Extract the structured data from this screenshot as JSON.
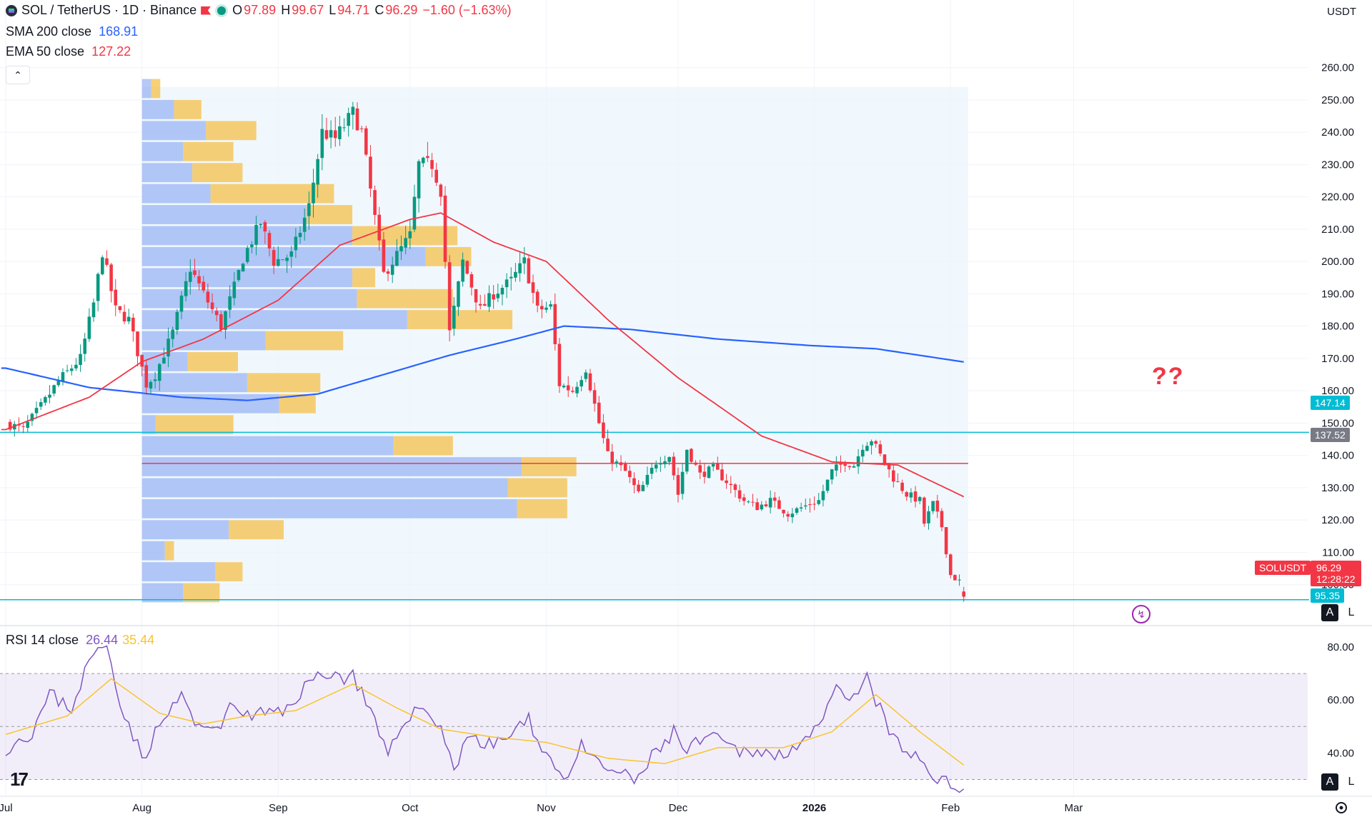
{
  "header": {
    "symbol": "SOL / TetherUS · 1D · Binance",
    "ohlc": {
      "o_label": "O",
      "o": "97.89",
      "h_label": "H",
      "h": "99.67",
      "l_label": "L",
      "l": "94.71",
      "c_label": "C",
      "c": "96.29",
      "change": "−1.60 (−1.63%)"
    },
    "sma_label": "SMA 200 close",
    "sma_value": "168.91",
    "ema_label": "EMA 50 close",
    "ema_value": "127.22",
    "currency": "USDT"
  },
  "overlay_text": {
    "question": "??",
    "tv_logo": "17"
  },
  "badges": {
    "resistance": "147.14",
    "poc": "137.52",
    "symbol_tag": "SOLUSDT",
    "last_price": "96.29",
    "countdown": "12:28:22",
    "support": "95.35",
    "auto_label": "A",
    "log_label": "L"
  },
  "rsi": {
    "label": "RSI 14 close",
    "value": "26.44",
    "ma_value": "35.44"
  },
  "colors": {
    "up": "#089981",
    "down": "#f23645",
    "sma": "#2962ff",
    "ema": "#f23645",
    "rsi": "#7e57c2",
    "rsi_ma": "#f7c52d",
    "line": "#00bcd4"
  },
  "chart_data": [
    {
      "type": "candlestick",
      "title": "SOL / TetherUS · 1D · Binance",
      "y_axis": {
        "ticks": [
          100,
          110,
          120,
          130,
          140,
          150,
          160,
          170,
          180,
          190,
          200,
          210,
          220,
          230,
          240,
          250,
          260
        ],
        "ylim": [
          88,
          263
        ]
      },
      "x_axis": {
        "tick_labels": [
          "Jul",
          "Aug",
          "Sep",
          "Oct",
          "Nov",
          "Dec",
          "2026",
          "Feb",
          "Mar"
        ],
        "tick_dates": [
          "2025-07-01",
          "2025-08-01",
          "2025-09-01",
          "2025-10-01",
          "2025-11-01",
          "2025-12-01",
          "2026-01-01",
          "2026-02-01",
          "2026-03-01"
        ]
      },
      "anchors": [
        [
          "2025-07-01",
          150
        ],
        [
          "2025-07-05",
          148
        ],
        [
          "2025-07-10",
          157
        ],
        [
          "2025-07-13",
          163
        ],
        [
          "2025-07-18",
          170
        ],
        [
          "2025-07-21",
          187
        ],
        [
          "2025-07-23",
          203
        ],
        [
          "2025-07-26",
          185
        ],
        [
          "2025-07-29",
          182
        ],
        [
          "2025-08-02",
          162
        ],
        [
          "2025-08-04",
          165
        ],
        [
          "2025-08-08",
          178
        ],
        [
          "2025-08-12",
          198
        ],
        [
          "2025-08-15",
          190
        ],
        [
          "2025-08-19",
          180
        ],
        [
          "2025-08-22",
          192
        ],
        [
          "2025-08-24",
          201
        ],
        [
          "2025-08-28",
          212
        ],
        [
          "2025-08-31",
          200
        ],
        [
          "2025-09-04",
          202
        ],
        [
          "2025-09-08",
          217
        ],
        [
          "2025-09-11",
          240
        ],
        [
          "2025-09-14",
          238
        ],
        [
          "2025-09-18",
          246
        ],
        [
          "2025-09-20",
          240
        ],
        [
          "2025-09-22",
          222
        ],
        [
          "2025-09-25",
          196
        ],
        [
          "2025-09-27",
          200
        ],
        [
          "2025-10-01",
          208
        ],
        [
          "2025-10-03",
          230
        ],
        [
          "2025-10-06",
          230
        ],
        [
          "2025-10-08",
          222
        ],
        [
          "2025-10-10",
          178
        ],
        [
          "2025-10-13",
          200
        ],
        [
          "2025-10-17",
          185
        ],
        [
          "2025-10-20",
          190
        ],
        [
          "2025-10-24",
          194
        ],
        [
          "2025-10-27",
          200
        ],
        [
          "2025-10-30",
          185
        ],
        [
          "2025-11-02",
          186
        ],
        [
          "2025-11-04",
          162
        ],
        [
          "2025-11-07",
          160
        ],
        [
          "2025-11-10",
          167
        ],
        [
          "2025-11-13",
          150
        ],
        [
          "2025-11-15",
          140
        ],
        [
          "2025-11-19",
          135
        ],
        [
          "2025-11-22",
          128
        ],
        [
          "2025-11-26",
          138
        ],
        [
          "2025-11-29",
          140
        ],
        [
          "2025-12-01",
          128
        ],
        [
          "2025-12-03",
          142
        ],
        [
          "2025-12-06",
          134
        ],
        [
          "2025-12-09",
          136
        ],
        [
          "2025-12-12",
          132
        ],
        [
          "2025-12-16",
          126
        ],
        [
          "2025-12-19",
          124
        ],
        [
          "2025-12-22",
          126
        ],
        [
          "2025-12-26",
          122
        ],
        [
          "2025-12-31",
          125
        ],
        [
          "2026-01-02",
          126
        ],
        [
          "2026-01-05",
          135
        ],
        [
          "2026-01-08",
          138
        ],
        [
          "2026-01-10",
          137
        ],
        [
          "2026-01-12",
          143
        ],
        [
          "2026-01-14",
          145
        ],
        [
          "2026-01-16",
          140
        ],
        [
          "2026-01-19",
          133
        ],
        [
          "2026-01-22",
          128
        ],
        [
          "2026-01-25",
          126
        ],
        [
          "2026-01-26",
          119
        ],
        [
          "2026-01-28",
          125
        ],
        [
          "2026-01-30",
          118
        ],
        [
          "2026-02-01",
          103
        ],
        [
          "2026-02-03",
          101
        ],
        [
          "2026-02-04",
          96.29
        ]
      ],
      "sma200": [
        [
          "2025-07-01",
          167
        ],
        [
          "2025-07-20",
          161
        ],
        [
          "2025-08-10",
          158
        ],
        [
          "2025-08-25",
          157
        ],
        [
          "2025-09-10",
          159
        ],
        [
          "2025-09-25",
          165
        ],
        [
          "2025-10-10",
          171
        ],
        [
          "2025-10-25",
          176
        ],
        [
          "2025-11-05",
          180
        ],
        [
          "2025-11-20",
          179
        ],
        [
          "2025-12-10",
          176
        ],
        [
          "2025-12-31",
          174
        ],
        [
          "2026-01-15",
          173
        ],
        [
          "2026-02-04",
          168.91
        ]
      ],
      "ema50": [
        [
          "2025-07-01",
          148
        ],
        [
          "2025-07-20",
          158
        ],
        [
          "2025-08-01",
          169
        ],
        [
          "2025-08-15",
          176
        ],
        [
          "2025-09-01",
          188
        ],
        [
          "2025-09-15",
          205
        ],
        [
          "2025-10-01",
          213
        ],
        [
          "2025-10-08",
          215
        ],
        [
          "2025-10-20",
          206
        ],
        [
          "2025-11-01",
          200
        ],
        [
          "2025-11-15",
          182
        ],
        [
          "2025-12-01",
          164
        ],
        [
          "2025-12-20",
          146
        ],
        [
          "2026-01-05",
          138
        ],
        [
          "2026-01-20",
          137
        ],
        [
          "2026-02-04",
          127.22
        ]
      ],
      "volume_profile_range": {
        "start": "2025-08-01",
        "end": "2026-02-05",
        "low": 95,
        "high": 254
      },
      "volume_profile": [
        [
          97.5,
          0.09,
          0.17
        ],
        [
          104.0,
          0.16,
          0.22
        ],
        [
          110.5,
          0.05,
          0.07
        ],
        [
          117.0,
          0.19,
          0.31
        ],
        [
          123.5,
          0.82,
          0.93
        ],
        [
          130.0,
          0.8,
          0.93
        ],
        [
          136.5,
          0.83,
          0.95
        ],
        [
          143.0,
          0.55,
          0.68
        ],
        [
          149.5,
          0.03,
          0.2
        ],
        [
          156.0,
          0.3,
          0.38
        ],
        [
          162.5,
          0.23,
          0.39
        ],
        [
          169.0,
          0.1,
          0.21
        ],
        [
          175.5,
          0.27,
          0.44
        ],
        [
          182.0,
          0.58,
          0.81
        ],
        [
          188.5,
          0.47,
          0.68
        ],
        [
          195.0,
          0.46,
          0.51
        ],
        [
          201.5,
          0.62,
          0.72
        ],
        [
          208.0,
          0.46,
          0.69
        ],
        [
          214.5,
          0.36,
          0.46
        ],
        [
          221.0,
          0.15,
          0.42
        ],
        [
          227.5,
          0.11,
          0.22
        ],
        [
          234.0,
          0.09,
          0.2
        ],
        [
          240.5,
          0.14,
          0.25
        ],
        [
          247.0,
          0.07,
          0.13
        ],
        [
          253.5,
          0.02,
          0.04
        ]
      ],
      "horizontal_lines": [
        147.14,
        137.52,
        95.35
      ]
    },
    {
      "type": "line",
      "title": "RSI 14 close",
      "y_axis": {
        "ticks": [
          40,
          60,
          80
        ],
        "ylim": [
          25,
          87
        ],
        "band": [
          30,
          70
        ]
      },
      "rsi_anchors": [
        [
          "2025-07-01",
          42
        ],
        [
          "2025-07-07",
          48
        ],
        [
          "2025-07-11",
          62
        ],
        [
          "2025-07-16",
          57
        ],
        [
          "2025-07-20",
          75
        ],
        [
          "2025-07-24",
          81
        ],
        [
          "2025-07-27",
          60
        ],
        [
          "2025-08-01",
          38
        ],
        [
          "2025-08-05",
          50
        ],
        [
          "2025-08-10",
          62
        ],
        [
          "2025-08-14",
          48
        ],
        [
          "2025-08-19",
          52
        ],
        [
          "2025-08-22",
          58
        ],
        [
          "2025-08-25",
          54
        ],
        [
          "2025-08-29",
          55
        ],
        [
          "2025-09-02",
          55
        ],
        [
          "2025-09-07",
          65
        ],
        [
          "2025-09-12",
          71
        ],
        [
          "2025-09-16",
          68
        ],
        [
          "2025-09-18",
          70
        ],
        [
          "2025-09-22",
          55
        ],
        [
          "2025-09-26",
          38
        ],
        [
          "2025-09-30",
          54
        ],
        [
          "2025-10-04",
          57
        ],
        [
          "2025-10-08",
          50
        ],
        [
          "2025-10-11",
          33
        ],
        [
          "2025-10-14",
          48
        ],
        [
          "2025-10-18",
          42
        ],
        [
          "2025-10-23",
          46
        ],
        [
          "2025-10-28",
          52
        ],
        [
          "2025-11-01",
          40
        ],
        [
          "2025-11-05",
          30
        ],
        [
          "2025-11-09",
          42
        ],
        [
          "2025-11-13",
          35
        ],
        [
          "2025-11-17",
          33
        ],
        [
          "2025-11-21",
          29
        ],
        [
          "2025-11-25",
          38
        ],
        [
          "2025-11-30",
          48
        ],
        [
          "2025-12-03",
          40
        ],
        [
          "2025-12-07",
          46
        ],
        [
          "2025-12-11",
          44
        ],
        [
          "2025-12-15",
          40
        ],
        [
          "2025-12-19",
          42
        ],
        [
          "2025-12-23",
          38
        ],
        [
          "2025-12-28",
          44
        ],
        [
          "2026-01-02",
          48
        ],
        [
          "2026-01-06",
          64
        ],
        [
          "2026-01-09",
          58
        ],
        [
          "2026-01-13",
          68
        ],
        [
          "2026-01-17",
          52
        ],
        [
          "2026-01-21",
          40
        ],
        [
          "2026-01-25",
          38
        ],
        [
          "2026-01-28",
          32
        ],
        [
          "2026-02-01",
          27
        ],
        [
          "2026-02-04",
          26.44
        ]
      ],
      "ma_anchors": [
        [
          "2025-07-01",
          47
        ],
        [
          "2025-07-15",
          54
        ],
        [
          "2025-07-25",
          68
        ],
        [
          "2025-08-05",
          55
        ],
        [
          "2025-08-15",
          51
        ],
        [
          "2025-08-25",
          54
        ],
        [
          "2025-09-05",
          56
        ],
        [
          "2025-09-18",
          66
        ],
        [
          "2025-09-28",
          57
        ],
        [
          "2025-10-08",
          49
        ],
        [
          "2025-10-20",
          46
        ],
        [
          "2025-11-01",
          44
        ],
        [
          "2025-11-15",
          38
        ],
        [
          "2025-11-28",
          36
        ],
        [
          "2025-12-10",
          42
        ],
        [
          "2025-12-25",
          42
        ],
        [
          "2026-01-05",
          48
        ],
        [
          "2026-01-15",
          62
        ],
        [
          "2026-01-25",
          48
        ],
        [
          "2026-02-04",
          35.44
        ]
      ],
      "x_axis": {
        "tick_labels": [
          "Jul",
          "Aug",
          "Sep",
          "Oct",
          "Nov",
          "Dec",
          "2026",
          "Feb",
          "Mar"
        ]
      }
    }
  ]
}
